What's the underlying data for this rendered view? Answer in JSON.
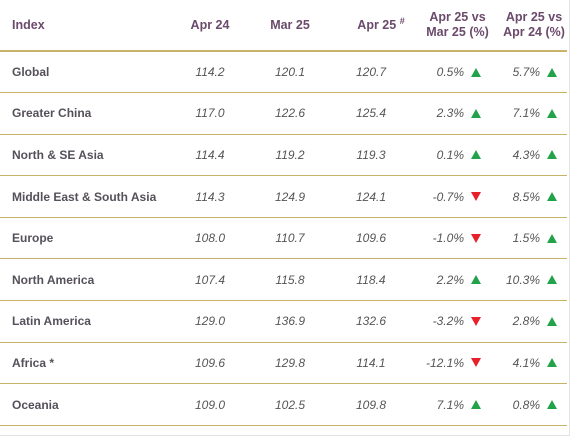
{
  "header": {
    "index": "Index",
    "apr24": "Apr 24",
    "mar25": "Mar 25",
    "apr25": "Apr 25",
    "apr25_mark": "#",
    "vs_mar_line1": "Apr 25 vs",
    "vs_mar_line2": "Mar 25 (%)",
    "vs_apr_line1": "Apr 25 vs",
    "vs_apr_line2": "Apr 24 (%)"
  },
  "colors": {
    "up": "#22a34a",
    "down": "#e8202a",
    "rule": "#c9b26a",
    "header_text": "#6b4a6b"
  },
  "rows": [
    {
      "region": "Global",
      "apr24": "114.2",
      "mar25": "120.1",
      "apr25": "120.7",
      "vs_mar": "0.5%",
      "vs_mar_dir": "up",
      "vs_apr": "5.7%",
      "vs_apr_dir": "up"
    },
    {
      "region": "Greater China",
      "apr24": "117.0",
      "mar25": "122.6",
      "apr25": "125.4",
      "vs_mar": "2.3%",
      "vs_mar_dir": "up",
      "vs_apr": "7.1%",
      "vs_apr_dir": "up"
    },
    {
      "region": "North & SE Asia",
      "apr24": "114.4",
      "mar25": "119.2",
      "apr25": "119.3",
      "vs_mar": "0.1%",
      "vs_mar_dir": "up",
      "vs_apr": "4.3%",
      "vs_apr_dir": "up"
    },
    {
      "region": "Middle East & South Asia",
      "apr24": "114.3",
      "mar25": "124.9",
      "apr25": "124.1",
      "vs_mar": "-0.7%",
      "vs_mar_dir": "down",
      "vs_apr": "8.5%",
      "vs_apr_dir": "up"
    },
    {
      "region": "Europe",
      "apr24": "108.0",
      "mar25": "110.7",
      "apr25": "109.6",
      "vs_mar": "-1.0%",
      "vs_mar_dir": "down",
      "vs_apr": "1.5%",
      "vs_apr_dir": "up"
    },
    {
      "region": "North America",
      "apr24": "107.4",
      "mar25": "115.8",
      "apr25": "118.4",
      "vs_mar": "2.2%",
      "vs_mar_dir": "up",
      "vs_apr": "10.3%",
      "vs_apr_dir": "up"
    },
    {
      "region": "Latin America",
      "apr24": "129.0",
      "mar25": "136.9",
      "apr25": "132.6",
      "vs_mar": "-3.2%",
      "vs_mar_dir": "down",
      "vs_apr": "2.8%",
      "vs_apr_dir": "up"
    },
    {
      "region": "Africa *",
      "apr24": "109.6",
      "mar25": "129.8",
      "apr25": "114.1",
      "vs_mar": "-12.1%",
      "vs_mar_dir": "down",
      "vs_apr": "4.1%",
      "vs_apr_dir": "up"
    },
    {
      "region": "Oceania",
      "apr24": "109.0",
      "mar25": "102.5",
      "apr25": "109.8",
      "vs_mar": "7.1%",
      "vs_mar_dir": "up",
      "vs_apr": "0.8%",
      "vs_apr_dir": "up"
    }
  ]
}
